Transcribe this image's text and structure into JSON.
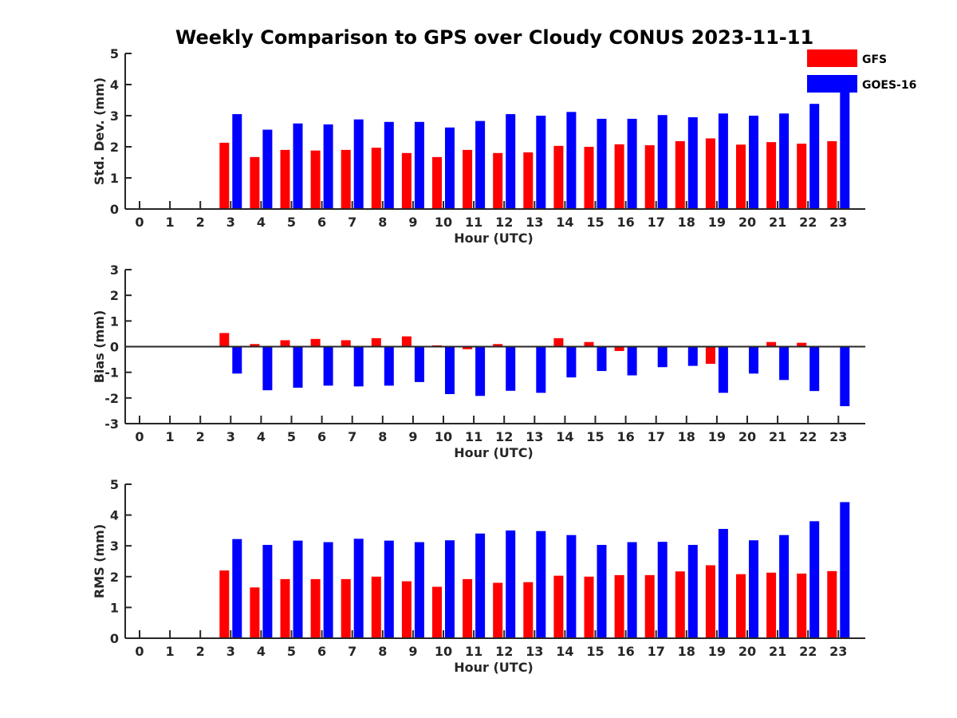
{
  "title": "Weekly Comparison to GPS over Cloudy CONUS 2023-11-11",
  "colors": {
    "GFS": "#ff0000",
    "GOES-16": "#0000ff"
  },
  "legend": {
    "items": [
      "GFS",
      "GOES-16"
    ],
    "placement": "top-right"
  },
  "chart_data": [
    {
      "type": "bar",
      "ylabel": "Std. Dev. (mm)",
      "xlabel": "Hour (UTC)",
      "ylim": [
        0,
        5
      ],
      "yticks": [
        0,
        1,
        2,
        3,
        4,
        5
      ],
      "x": [
        0,
        1,
        2,
        3,
        4,
        5,
        6,
        7,
        8,
        9,
        10,
        11,
        12,
        13,
        14,
        15,
        16,
        17,
        18,
        19,
        20,
        21,
        22,
        23
      ],
      "series": [
        {
          "name": "GFS",
          "values": [
            0,
            0,
            0,
            2.13,
            1.67,
            1.9,
            1.88,
            1.9,
            1.97,
            1.8,
            1.67,
            1.9,
            1.8,
            1.82,
            2.03,
            2.0,
            2.08,
            2.05,
            2.18,
            2.27,
            2.07,
            2.15,
            2.1,
            2.18
          ]
        },
        {
          "name": "GOES-16",
          "values": [
            0,
            0,
            0,
            3.05,
            2.55,
            2.75,
            2.72,
            2.88,
            2.8,
            2.8,
            2.62,
            2.83,
            3.05,
            3.0,
            3.12,
            2.9,
            2.9,
            3.02,
            2.95,
            3.07,
            3.0,
            3.07,
            3.38,
            4.05
          ]
        }
      ]
    },
    {
      "type": "bar",
      "ylabel": "Bias (mm)",
      "xlabel": "Hour (UTC)",
      "ylim": [
        -3,
        3
      ],
      "yticks": [
        -3,
        -2,
        -1,
        0,
        1,
        2,
        3
      ],
      "x": [
        0,
        1,
        2,
        3,
        4,
        5,
        6,
        7,
        8,
        9,
        10,
        11,
        12,
        13,
        14,
        15,
        16,
        17,
        18,
        19,
        20,
        21,
        22,
        23
      ],
      "series": [
        {
          "name": "GFS",
          "values": [
            0,
            0,
            0,
            0.53,
            0.1,
            0.25,
            0.3,
            0.25,
            0.33,
            0.4,
            0.05,
            -0.1,
            0.1,
            0.02,
            0.33,
            0.18,
            -0.17,
            0,
            0,
            -0.67,
            0.02,
            0.18,
            0.15,
            0.02
          ]
        },
        {
          "name": "GOES-16",
          "values": [
            0,
            0,
            0,
            -1.05,
            -1.7,
            -1.6,
            -1.52,
            -1.55,
            -1.52,
            -1.38,
            -1.85,
            -1.92,
            -1.72,
            -1.8,
            -1.2,
            -0.95,
            -1.12,
            -0.8,
            -0.75,
            -1.8,
            -1.05,
            -1.3,
            -1.73,
            -2.32
          ]
        }
      ]
    },
    {
      "type": "bar",
      "ylabel": "RMS (mm)",
      "xlabel": "Hour (UTC)",
      "ylim": [
        0,
        5
      ],
      "yticks": [
        0,
        1,
        2,
        3,
        4,
        5
      ],
      "x": [
        0,
        1,
        2,
        3,
        4,
        5,
        6,
        7,
        8,
        9,
        10,
        11,
        12,
        13,
        14,
        15,
        16,
        17,
        18,
        19,
        20,
        21,
        22,
        23
      ],
      "series": [
        {
          "name": "GFS",
          "values": [
            0,
            0,
            0,
            2.2,
            1.65,
            1.92,
            1.92,
            1.92,
            2.0,
            1.85,
            1.67,
            1.92,
            1.8,
            1.82,
            2.03,
            2.0,
            2.05,
            2.05,
            2.17,
            2.37,
            2.08,
            2.13,
            2.1,
            2.18
          ]
        },
        {
          "name": "GOES-16",
          "values": [
            0,
            0,
            0,
            3.22,
            3.03,
            3.17,
            3.12,
            3.23,
            3.17,
            3.12,
            3.18,
            3.4,
            3.5,
            3.48,
            3.35,
            3.03,
            3.12,
            3.13,
            3.03,
            3.55,
            3.18,
            3.35,
            3.8,
            4.42
          ]
        }
      ]
    }
  ]
}
